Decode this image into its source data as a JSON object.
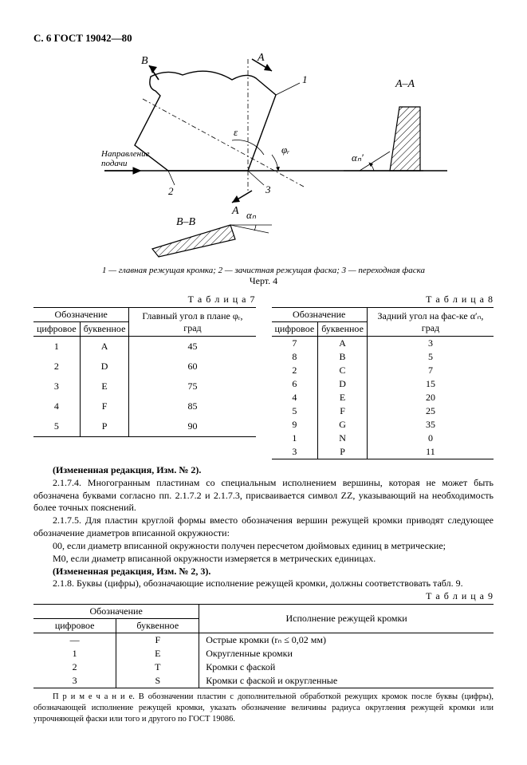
{
  "header": "С. 6 ГОСТ 19042—80",
  "figure": {
    "caption_prefix": "1 — главная режущая кромка; 2 — зачистная режущая фаска; 3 — переходная фаска",
    "number": "Черт. 4",
    "labels": {
      "A": "A",
      "B": "B",
      "AA": "A–A",
      "BB": "B–B",
      "one": "1",
      "two": "2",
      "three": "3",
      "eps": "ε",
      "phi": "φᵣ",
      "alpha1": "αₙ′",
      "alpha2": "αₙ",
      "dir": "Направление",
      "podachi": "подачи"
    }
  },
  "table7": {
    "title": "Т а б л и ц а  7",
    "head_group": "Обозначение",
    "head_c1": "цифровое",
    "head_c2": "буквенное",
    "head_c3": "Главный угол в плане φᵣ, град",
    "rows": [
      {
        "c1": "1",
        "c2": "A",
        "c3": "45"
      },
      {
        "c1": "2",
        "c2": "D",
        "c3": "60"
      },
      {
        "c1": "3",
        "c2": "E",
        "c3": "75"
      },
      {
        "c1": "4",
        "c2": "F",
        "c3": "85"
      },
      {
        "c1": "5",
        "c2": "P",
        "c3": "90"
      }
    ]
  },
  "table8": {
    "title": "Т а б л и ц а  8",
    "head_group": "Обозначение",
    "head_c1": "цифровое",
    "head_c2": "буквенное",
    "head_c3": "Задний угол на фас-ке α′ₙ, град",
    "rows": [
      {
        "c1": "7",
        "c2": "A",
        "c3": "3"
      },
      {
        "c1": "8",
        "c2": "B",
        "c3": "5"
      },
      {
        "c1": "2",
        "c2": "C",
        "c3": "7"
      },
      {
        "c1": "6",
        "c2": "D",
        "c3": "15"
      },
      {
        "c1": "4",
        "c2": "E",
        "c3": "20"
      },
      {
        "c1": "5",
        "c2": "F",
        "c3": "25"
      },
      {
        "c1": "9",
        "c2": "G",
        "c3": "35"
      },
      {
        "c1": "1",
        "c2": "N",
        "c3": "0"
      },
      {
        "c1": "3",
        "c2": "P",
        "c3": "11"
      }
    ]
  },
  "para": {
    "p0": "(Измененная редакция, Изм. № 2).",
    "p1": "2.1.7.4. Многогранным пластинам со специальным исполнением вершины, которая не может быть обозначена буквами согласно пп. 2.1.7.2 и 2.1.7.3, присваивается символ ZZ, указывающий на необходимость более точных пояснений.",
    "p2": "2.1.7.5. Для пластин круглой формы вместо обозначения вершин режущей кромки приводят следующее обозначение диаметров вписанной окружности:",
    "p3": "00, если диаметр вписанной окружности получен пересчетом дюймовых единиц в метрические;",
    "p4": "M0, если диаметр вписанной окружности измеряется в метрических единицах.",
    "p5": "(Измененная редакция, Изм. № 2, 3).",
    "p6": "2.1.8. Буквы (цифры), обозначающие исполнение режущей кромки, должны соответствовать табл. 9."
  },
  "table9": {
    "title": "Т а б л и ц а  9",
    "head_group": "Обозначение",
    "head_c1": "цифровое",
    "head_c2": "буквенное",
    "head_c3": "Исполнение режущей кромки",
    "rows": [
      {
        "c1": "—",
        "c2": "F",
        "c3": "Острые кромки (rₙ ≤ 0,02 мм)"
      },
      {
        "c1": "1",
        "c2": "E",
        "c3": "Округленные кромки"
      },
      {
        "c1": "2",
        "c2": "T",
        "c3": "Кромки с фаской"
      },
      {
        "c1": "3",
        "c2": "S",
        "c3": "Кромки с фаской и округленные"
      }
    ]
  },
  "note": "П р и м е ч а н и е.  В обозначении пластин с дополнительной обработкой режущих кромок после буквы (цифры), обозначающей исполнение режущей кромки, указать обозначение величины радиуса округления режущей кромки или упрочняющей фаски или того и другого по ГОСТ 19086."
}
